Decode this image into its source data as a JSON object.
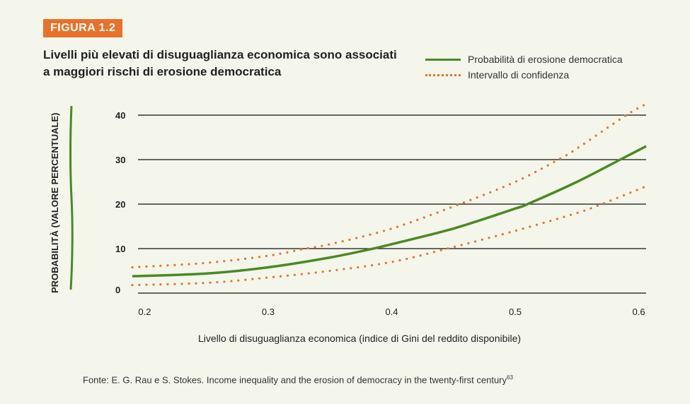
{
  "figure_label": "FIGURA 1.2",
  "title": "Livelli più elevati di disuguaglianza economica sono associati a maggiori rischi di erosione democratica",
  "source": "Fonte: E. G. Rau e S. Stokes. Income inequality and the erosion of democracy in the twenty-first century",
  "source_note": "63",
  "colors": {
    "accent": "#e8722a",
    "line": "#4a8a24",
    "background": "#f4f6ec"
  },
  "chart_data": {
    "type": "line",
    "xlabel": "Livello di disuguaglianza economica (indice di Gini del reddito disponibile)",
    "ylabel": "PROBABILITÀ (VALORE PERCENTUALE)",
    "xlim": [
      0.186,
      0.606
    ],
    "ylim": [
      0,
      40
    ],
    "xticks": [
      "0.2",
      "0.3",
      "0.4",
      "0.5",
      "0.6"
    ],
    "yticks": [
      "0",
      "10",
      "20",
      "30",
      "40"
    ],
    "grid": "horizontal",
    "legend": "top-right",
    "series": [
      {
        "name": "Probabilità di erosione democratica",
        "style": "solid",
        "color": "#4a8a24",
        "x": [
          0.19,
          0.25,
          0.3,
          0.35,
          0.385,
          0.4,
          0.45,
          0.5,
          0.51,
          0.55,
          0.585,
          0.606
        ],
        "y": [
          3.8,
          4.4,
          5.8,
          8,
          10,
          11,
          14.5,
          19,
          20,
          25,
          30,
          33
        ]
      },
      {
        "name": "Intervallo di confidenza",
        "style": "dotted",
        "color": "#e8722a",
        "x": [
          0.19,
          0.25,
          0.3,
          0.33,
          0.35,
          0.4,
          0.455,
          0.5,
          0.535,
          0.55,
          0.59,
          0.606
        ],
        "y": [
          5.8,
          6.8,
          8.4,
          10,
          11,
          14.5,
          20,
          25,
          30,
          32.5,
          40,
          42.5
        ]
      },
      {
        "style": "dotted",
        "color": "#e8722a",
        "x": [
          0.19,
          0.25,
          0.3,
          0.35,
          0.4,
          0.445,
          0.5,
          0.55,
          0.57,
          0.606
        ],
        "y": [
          1.8,
          2.3,
          3.5,
          5,
          7,
          10,
          14,
          18,
          20,
          24
        ]
      }
    ]
  }
}
